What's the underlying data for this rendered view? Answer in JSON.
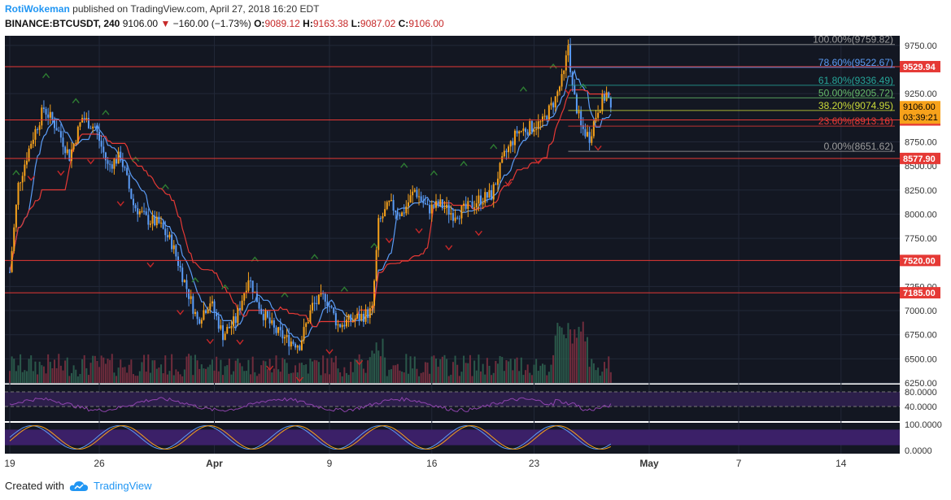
{
  "header": {
    "author": "RotiWokeman",
    "published_text": "published on TradingView.com, April 27, 2018 16:20 EDT",
    "symbol": "BINANCE:BTCUSDT, 240",
    "last": "9106.00",
    "down_arrow": "▼",
    "change": "−160.00 (−1.73%)",
    "o_label": "O:",
    "o_value": "9089.12",
    "h_label": "H:",
    "h_value": "9163.38",
    "l_label": "L:",
    "l_value": "9087.02",
    "c_label": "C:",
    "c_value": "9106.00"
  },
  "footer": {
    "created_with": "Created with",
    "brand": "TradingView",
    "logo_icon": "cloud-icon"
  },
  "colors": {
    "panel_bg": "#131722",
    "up": "#f7a21b",
    "down": "#5b9cf6",
    "grid": "#222838",
    "level_red": "#e53935",
    "kijun": "#e53935",
    "tenkan": "#5b9cf6",
    "rsi_fill": "#2c1f4a",
    "stoch_fill": "#3b2068"
  },
  "chart_data": {
    "type": "candlestick",
    "title": "BINANCE:BTCUSDT, 240",
    "ylim": [
      6250,
      9850
    ],
    "y_ticks": [
      "9750.00",
      "9250.00",
      "8750.00",
      "8500.00",
      "8250.00",
      "8000.00",
      "7750.00",
      "7250.00",
      "7000.00",
      "6750.00",
      "6500.00",
      "6250.00"
    ],
    "x_ticks": [
      "19",
      "26",
      "Apr",
      "9",
      "16",
      "23",
      "May",
      "7",
      "14"
    ],
    "price_path": [
      {
        "b": 0,
        "p": 7400
      },
      {
        "b": 4,
        "p": 8300
      },
      {
        "b": 10,
        "p": 8750
      },
      {
        "b": 16,
        "p": 9100
      },
      {
        "b": 22,
        "p": 8900
      },
      {
        "b": 28,
        "p": 8600
      },
      {
        "b": 34,
        "p": 9000
      },
      {
        "b": 40,
        "p": 8900
      },
      {
        "b": 46,
        "p": 8500
      },
      {
        "b": 52,
        "p": 8600
      },
      {
        "b": 58,
        "p": 8100
      },
      {
        "b": 64,
        "p": 7950
      },
      {
        "b": 70,
        "p": 7900
      },
      {
        "b": 76,
        "p": 7700
      },
      {
        "b": 82,
        "p": 7300
      },
      {
        "b": 88,
        "p": 6900
      },
      {
        "b": 94,
        "p": 7100
      },
      {
        "b": 100,
        "p": 6750
      },
      {
        "b": 106,
        "p": 6900
      },
      {
        "b": 112,
        "p": 7350
      },
      {
        "b": 118,
        "p": 7000
      },
      {
        "b": 124,
        "p": 6800
      },
      {
        "b": 130,
        "p": 6700
      },
      {
        "b": 136,
        "p": 6650
      },
      {
        "b": 142,
        "p": 7050
      },
      {
        "b": 148,
        "p": 7150
      },
      {
        "b": 154,
        "p": 6850
      },
      {
        "b": 160,
        "p": 6900
      },
      {
        "b": 166,
        "p": 6950
      },
      {
        "b": 170,
        "p": 7000
      },
      {
        "b": 173,
        "p": 7900
      },
      {
        "b": 178,
        "p": 8100
      },
      {
        "b": 184,
        "p": 8000
      },
      {
        "b": 190,
        "p": 8250
      },
      {
        "b": 196,
        "p": 8050
      },
      {
        "b": 202,
        "p": 8100
      },
      {
        "b": 208,
        "p": 8000
      },
      {
        "b": 214,
        "p": 8050
      },
      {
        "b": 220,
        "p": 8150
      },
      {
        "b": 226,
        "p": 8200
      },
      {
        "b": 232,
        "p": 8600
      },
      {
        "b": 238,
        "p": 8850
      },
      {
        "b": 244,
        "p": 8900
      },
      {
        "b": 250,
        "p": 8950
      },
      {
        "b": 256,
        "p": 9200
      },
      {
        "b": 260,
        "p": 9450
      },
      {
        "b": 262,
        "p": 9760
      },
      {
        "b": 264,
        "p": 9300
      },
      {
        "b": 268,
        "p": 8900
      },
      {
        "b": 272,
        "p": 8800
      },
      {
        "b": 276,
        "p": 9100
      },
      {
        "b": 280,
        "p": 9250
      },
      {
        "b": 282,
        "p": 9106
      }
    ],
    "last_bar": 282,
    "date_bars": {
      "19": 0,
      "26": 42,
      "Apr": 96,
      "9": 150,
      "16": 198,
      "23": 246,
      "May": 300,
      "7": 342,
      "14": 390
    },
    "price_levels": [
      {
        "value": 9529.94,
        "label": "9529.94"
      },
      {
        "value": 8977.0,
        "label": "8977.00"
      },
      {
        "value": 8577.9,
        "label": "8577.90"
      },
      {
        "value": 7520.0,
        "label": "7520.00"
      },
      {
        "value": 7185.0,
        "label": "7185.00"
      }
    ],
    "current_price": {
      "value": 9106.0,
      "label": "9106.00",
      "countdown": "03:39:21"
    },
    "fibonacci": [
      {
        "ratio": "100.00%",
        "price": "9759.82",
        "value": 9759.82,
        "color": "#9e9e9e"
      },
      {
        "ratio": "78.60%",
        "price": "9522.67",
        "value": 9522.67,
        "color": "#5b9cf6"
      },
      {
        "ratio": "61.80%",
        "price": "9336.49",
        "value": 9336.49,
        "color": "#26a69a"
      },
      {
        "ratio": "50.00%",
        "price": "9205.72",
        "value": 9205.72,
        "color": "#66bb6a"
      },
      {
        "ratio": "38.20%",
        "price": "9074.95",
        "value": 9074.95,
        "color": "#cddc39"
      },
      {
        "ratio": "23.60%",
        "price": "8913.16",
        "value": 8913.16,
        "color": "#e53935"
      },
      {
        "ratio": "0.00%",
        "price": "8651.62",
        "value": 8651.62,
        "color": "#9e9e9e"
      }
    ],
    "rsi": {
      "ticks": [
        "80.0000",
        "40.0000"
      ],
      "levels": [
        80,
        40
      ]
    },
    "stochastic": {
      "ticks": [
        "100.0000",
        "0.0000"
      ],
      "levels": [
        100,
        0
      ]
    }
  }
}
